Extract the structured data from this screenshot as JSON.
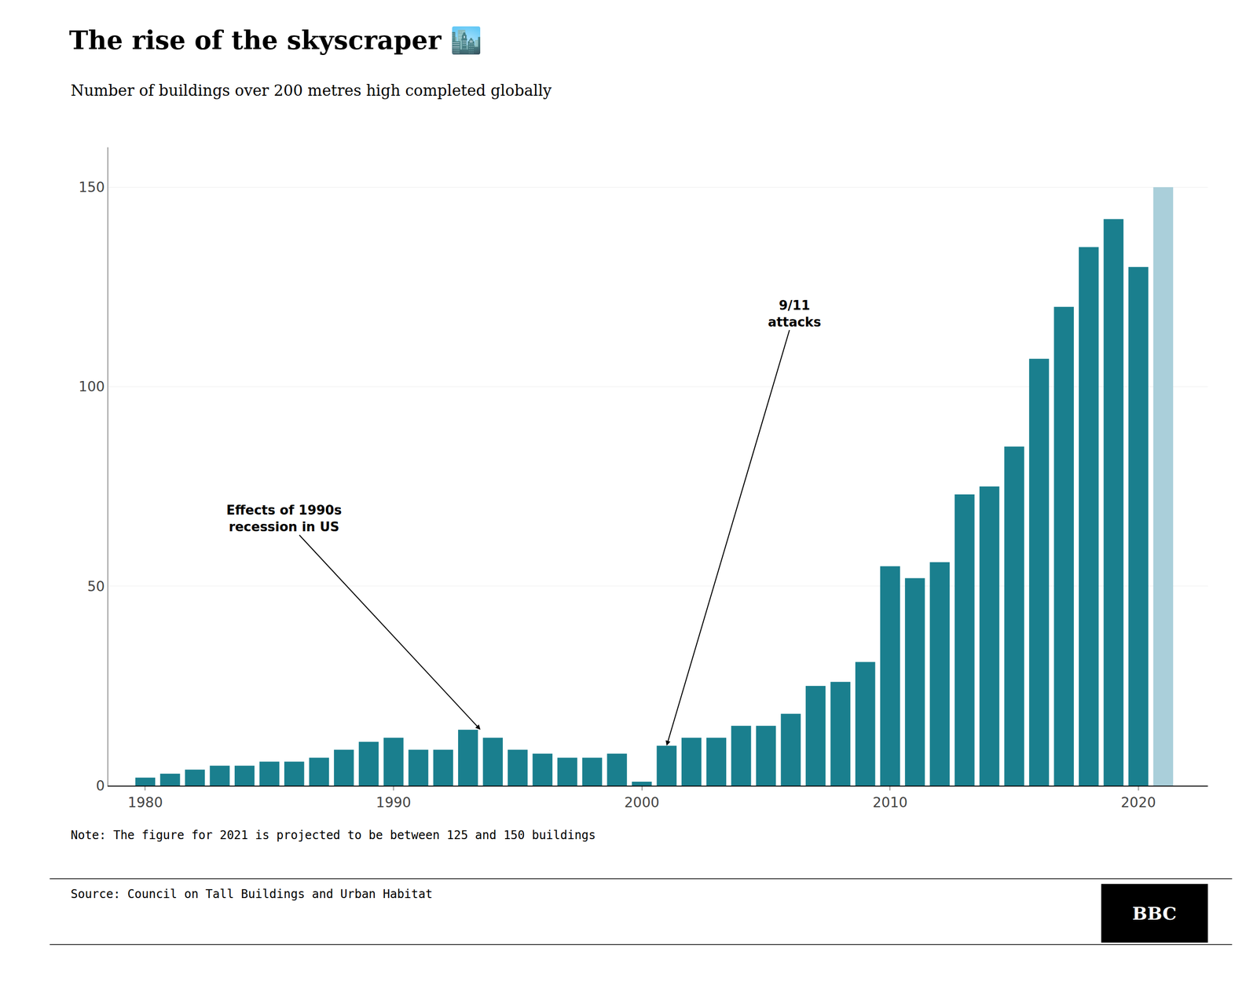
{
  "chart_data": {
    "type": "bar",
    "title": "The rise of the skyscraper 🏙️",
    "subtitle": "Number of buildings over 200 metres high completed globally",
    "note": "Note: The figure for 2021 is projected to be between 125 and 150 buildings",
    "source": "Source: Council on Tall Buildings and Urban Habitat",
    "logo": "BBC",
    "categories": [
      1980,
      1981,
      1982,
      1983,
      1984,
      1985,
      1986,
      1987,
      1988,
      1989,
      1990,
      1991,
      1992,
      1993,
      1994,
      1995,
      1996,
      1997,
      1998,
      1999,
      2000,
      2001,
      2002,
      2003,
      2004,
      2005,
      2006,
      2007,
      2008,
      2009,
      2010,
      2011,
      2012,
      2013,
      2014,
      2015,
      2016,
      2017,
      2018,
      2019,
      2020,
      2021
    ],
    "values": [
      2,
      3,
      4,
      5,
      5,
      6,
      6,
      7,
      9,
      11,
      12,
      9,
      9,
      14,
      12,
      9,
      8,
      7,
      7,
      8,
      1,
      10,
      12,
      12,
      15,
      15,
      18,
      25,
      26,
      31,
      55,
      52,
      56,
      73,
      75,
      85,
      107,
      120,
      135,
      142,
      130,
      150
    ],
    "colors": [
      "#1a7f8e",
      "#1a7f8e",
      "#1a7f8e",
      "#1a7f8e",
      "#1a7f8e",
      "#1a7f8e",
      "#1a7f8e",
      "#1a7f8e",
      "#1a7f8e",
      "#1a7f8e",
      "#1a7f8e",
      "#1a7f8e",
      "#1a7f8e",
      "#1a7f8e",
      "#1a7f8e",
      "#1a7f8e",
      "#1a7f8e",
      "#1a7f8e",
      "#1a7f8e",
      "#1a7f8e",
      "#1a7f8e",
      "#1a7f8e",
      "#1a7f8e",
      "#1a7f8e",
      "#1a7f8e",
      "#1a7f8e",
      "#1a7f8e",
      "#1a7f8e",
      "#1a7f8e",
      "#1a7f8e",
      "#1a7f8e",
      "#1a7f8e",
      "#1a7f8e",
      "#1a7f8e",
      "#1a7f8e",
      "#1a7f8e",
      "#1a7f8e",
      "#1a7f8e",
      "#1a7f8e",
      "#1a7f8e",
      "#1a7f8e",
      "#aacfda"
    ],
    "xlim": [
      1978.5,
      2022.8
    ],
    "xticks": [
      1980,
      1990,
      2000,
      2010,
      2020
    ],
    "ylim": [
      0,
      160
    ],
    "yticks": [
      0,
      50,
      100,
      150
    ],
    "grid": true,
    "annotations": [
      {
        "text": "Effects of 1990s\nrecession in US",
        "x": 1993.5,
        "y": 14
      },
      {
        "text": "9/11\nattacks",
        "x": 2001.0,
        "y": 10
      }
    ]
  }
}
